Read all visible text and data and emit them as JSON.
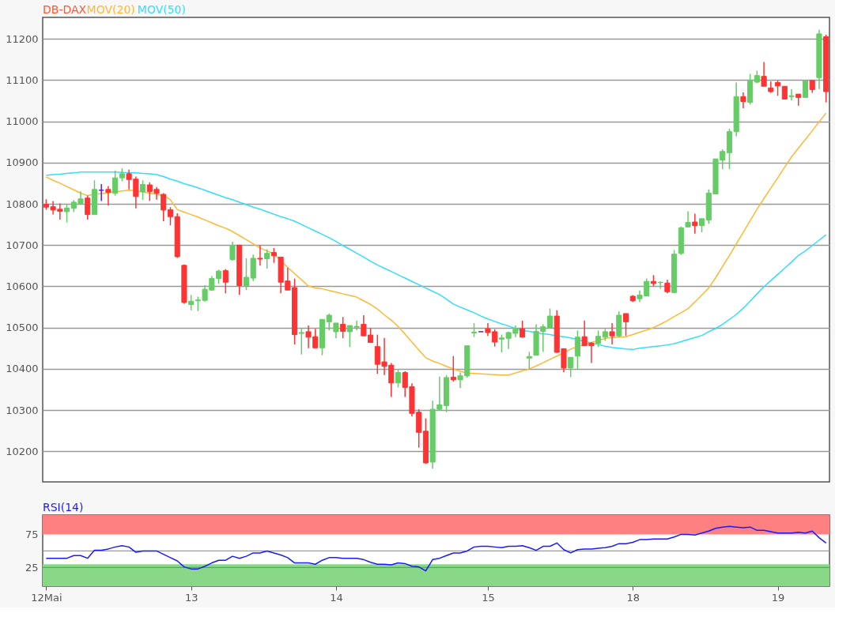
{
  "chart_data": [
    {
      "type": "candlestick",
      "legend": "top left",
      "grid": "y",
      "tick_labels": "y",
      "categories": [
        null,
        null,
        null,
        null,
        null,
        null,
        null,
        null,
        null,
        null,
        null,
        null,
        null,
        null,
        null,
        null,
        null,
        null,
        null,
        null,
        null,
        null,
        null,
        null,
        null,
        null,
        null,
        null,
        null,
        null,
        null,
        null,
        null,
        null,
        null,
        null,
        null,
        null,
        null,
        null,
        null,
        null,
        null,
        null,
        null,
        null,
        null,
        null,
        null,
        null,
        null,
        null,
        null,
        null,
        null,
        null,
        null,
        null,
        null,
        null,
        null,
        null,
        null,
        null,
        null,
        null,
        null,
        null,
        null,
        null,
        null,
        null,
        null,
        null,
        null,
        null,
        null,
        null,
        null,
        null,
        null,
        null,
        null,
        null,
        null,
        null,
        null,
        null,
        null,
        null,
        null,
        null,
        null,
        null,
        null,
        null,
        null,
        null,
        null,
        null,
        null,
        null,
        null,
        null,
        null,
        null,
        null,
        null,
        null,
        null,
        null,
        null,
        null,
        null
      ],
      "ylim": [
        10126,
        11252
      ],
      "yticks": [
        {
          "value": 10200,
          "label": "10200"
        },
        {
          "value": 10300,
          "label": "10300"
        },
        {
          "value": 10400,
          "label": "10400"
        },
        {
          "value": 10500,
          "label": "10500"
        },
        {
          "value": 10600,
          "label": "10600"
        },
        {
          "value": 10700,
          "label": "10700"
        },
        {
          "value": 10800,
          "label": "10800"
        },
        {
          "value": 10900,
          "label": "10900"
        },
        {
          "value": 11000,
          "label": "11000"
        },
        {
          "value": 11100,
          "label": "11100"
        },
        {
          "value": 11200,
          "label": "11200"
        }
      ],
      "series": [
        {
          "name": "DB-DAX",
          "type": "candlestick",
          "color": "#ff5533",
          "ohlc": [
            [
              10799,
              10811,
              10786,
              10792
            ],
            [
              10793,
              10807,
              10774,
              10785
            ],
            [
              10787,
              10801,
              10762,
              10782
            ],
            [
              10781,
              10798,
              10755,
              10790
            ],
            [
              10789,
              10809,
              10780,
              10804
            ],
            [
              10801,
              10830,
              10798,
              10812
            ],
            [
              10814,
              10820,
              10762,
              10774
            ],
            [
              10774,
              10857,
              10774,
              10835
            ],
            [
              10833,
              10848,
              10807,
              10833
            ],
            [
              10835,
              10843,
              10796,
              10828
            ],
            [
              10826,
              10881,
              10820,
              10863
            ],
            [
              10863,
              10886,
              10855,
              10873
            ],
            [
              10873,
              10883,
              10835,
              10859
            ],
            [
              10860,
              10866,
              10789,
              10818
            ],
            [
              10829,
              10857,
              10810,
              10847
            ],
            [
              10846,
              10852,
              10807,
              10830
            ],
            [
              10835,
              10841,
              10810,
              10826
            ],
            [
              10823,
              10826,
              10758,
              10785
            ],
            [
              10786,
              10792,
              10748,
              10769
            ],
            [
              10769,
              10777,
              10669,
              10672
            ],
            [
              10651,
              10653,
              10558,
              10561
            ],
            [
              10556,
              10579,
              10542,
              10564
            ],
            [
              10565,
              10575,
              10540,
              10567
            ],
            [
              10566,
              10603,
              10563,
              10593
            ],
            [
              10591,
              10625,
              10589,
              10619
            ],
            [
              10619,
              10640,
              10606,
              10637
            ],
            [
              10638,
              10642,
              10583,
              10610
            ],
            [
              10665,
              10708,
              10662,
              10699
            ],
            [
              10700,
              10700,
              10580,
              10602
            ],
            [
              10602,
              10668,
              10591,
              10622
            ],
            [
              10620,
              10677,
              10613,
              10668
            ],
            [
              10668,
              10700,
              10650,
              10666
            ],
            [
              10667,
              10690,
              10643,
              10680
            ],
            [
              10682,
              10693,
              10657,
              10674
            ],
            [
              10671,
              10671,
              10583,
              10610
            ],
            [
              10613,
              10645,
              10591,
              10591
            ],
            [
              10597,
              10619,
              10459,
              10483
            ],
            [
              10486,
              10499,
              10435,
              10488
            ],
            [
              10490,
              10505,
              10450,
              10477
            ],
            [
              10478,
              10497,
              10451,
              10451
            ],
            [
              10451,
              10520,
              10433,
              10520
            ],
            [
              10514,
              10534,
              10493,
              10530
            ],
            [
              10490,
              10511,
              10474,
              10511
            ],
            [
              10508,
              10526,
              10474,
              10491
            ],
            [
              10490,
              10505,
              10453,
              10505
            ],
            [
              10501,
              10517,
              10493,
              10503
            ],
            [
              10508,
              10530,
              10480,
              10480
            ],
            [
              10482,
              10499,
              10464,
              10464
            ],
            [
              10454,
              10483,
              10388,
              10411
            ],
            [
              10417,
              10475,
              10385,
              10406
            ],
            [
              10409,
              10414,
              10332,
              10366
            ],
            [
              10366,
              10398,
              10355,
              10391
            ],
            [
              10391,
              10394,
              10332,
              10355
            ],
            [
              10357,
              10365,
              10285,
              10292
            ],
            [
              10295,
              10302,
              10209,
              10246
            ],
            [
              10249,
              10280,
              10170,
              10172
            ],
            [
              10174,
              10323,
              10158,
              10302
            ],
            [
              10302,
              10381,
              10299,
              10313
            ],
            [
              10311,
              10385,
              10295,
              10379
            ],
            [
              10380,
              10431,
              10369,
              10374
            ],
            [
              10374,
              10391,
              10354,
              10383
            ],
            [
              10383,
              10456,
              10379,
              10456
            ],
            [
              10487,
              10511,
              10477,
              10489
            ],
            [
              10490,
              10490,
              10490,
              10490
            ],
            [
              10497,
              10511,
              10480,
              10488
            ],
            [
              10490,
              10496,
              10454,
              10465
            ],
            [
              10472,
              10483,
              10440,
              10475
            ],
            [
              10474,
              10490,
              10448,
              10488
            ],
            [
              10486,
              10505,
              10477,
              10497
            ],
            [
              10497,
              10517,
              10477,
              10477
            ],
            [
              10426,
              10441,
              10398,
              10430
            ],
            [
              10433,
              10508,
              10433,
              10491
            ],
            [
              10491,
              10508,
              10441,
              10502
            ],
            [
              10499,
              10546,
              10499,
              10528
            ],
            [
              10528,
              10542,
              10439,
              10440
            ],
            [
              10449,
              10449,
              10392,
              10402
            ],
            [
              10402,
              10428,
              10380,
              10428
            ],
            [
              10431,
              10493,
              10400,
              10477
            ],
            [
              10478,
              10517,
              10456,
              10456
            ],
            [
              10462,
              10465,
              10414,
              10456
            ],
            [
              10462,
              10493,
              10453,
              10479
            ],
            [
              10477,
              10497,
              10468,
              10490
            ],
            [
              10490,
              10511,
              10459,
              10480
            ],
            [
              10480,
              10539,
              10477,
              10530
            ],
            [
              10534,
              10534,
              10480,
              10514
            ],
            [
              10576,
              10579,
              10562,
              10565
            ],
            [
              10570,
              10590,
              10562,
              10579
            ],
            [
              10577,
              10619,
              10576,
              10612
            ],
            [
              10612,
              10627,
              10601,
              10607
            ],
            [
              10609,
              10612,
              10594,
              10610
            ],
            [
              10608,
              10616,
              10583,
              10587
            ],
            [
              10585,
              10688,
              10585,
              10678
            ],
            [
              10680,
              10745,
              10676,
              10742
            ],
            [
              10744,
              10782,
              10744,
              10755
            ],
            [
              10756,
              10776,
              10728,
              10747
            ],
            [
              10747,
              10764,
              10731,
              10764
            ],
            [
              10761,
              10835,
              10752,
              10826
            ],
            [
              10824,
              10909,
              10823,
              10909
            ],
            [
              10906,
              10932,
              10884,
              10927
            ],
            [
              10924,
              10982,
              10884,
              10975
            ],
            [
              10975,
              11094,
              10964,
              11060
            ],
            [
              11060,
              11070,
              11032,
              11048
            ],
            [
              11046,
              11115,
              11041,
              11100
            ],
            [
              11095,
              11123,
              11093,
              11111
            ],
            [
              11109,
              11144,
              11085,
              11085
            ],
            [
              11081,
              11097,
              11069,
              11072
            ],
            [
              11094,
              11099,
              11062,
              11086
            ],
            [
              11085,
              11085,
              11054,
              11054
            ],
            [
              11060,
              11078,
              11051,
              11062
            ],
            [
              11066,
              11066,
              11038,
              11058
            ],
            [
              11058,
              11099,
              11058,
              11099
            ],
            [
              11099,
              11100,
              11069,
              11077
            ],
            [
              11106,
              11222,
              11078,
              11212
            ],
            [
              11205,
              11210,
              11046,
              11072
            ]
          ],
          "colors": [
            "#ff3333",
            "#ff3333",
            "#ff3333",
            "#66cc66",
            "#66cc66",
            "#66cc66",
            "#ff3333",
            "#66cc66",
            "#5522cc",
            "#ff3333",
            "#66cc66",
            "#66cc66",
            "#ff3333",
            "#ff3333",
            "#66cc66",
            "#ff3333",
            "#ff3333",
            "#ff3333",
            "#ff3333",
            "#ff3333",
            "#ff3333",
            "#66cc66",
            "#66cc66",
            "#66cc66",
            "#66cc66",
            "#66cc66",
            "#ff3333",
            "#66cc66",
            "#ff3333",
            "#66cc66",
            "#66cc66",
            "#ff3333",
            "#66cc66",
            "#ff3333",
            "#ff3333",
            "#ff3333",
            "#ff3333",
            "#66cc66",
            "#ff3333",
            "#ff3333",
            "#66cc66",
            "#66cc66",
            "#66cc66",
            "#ff3333",
            "#66cc66",
            "#66cc66",
            "#ff3333",
            "#ff3333",
            "#ff3333",
            "#ff3333",
            "#ff3333",
            "#66cc66",
            "#ff3333",
            "#ff3333",
            "#ff3333",
            "#ff3333",
            "#66cc66",
            "#66cc66",
            "#66cc66",
            "#ff3333",
            "#66cc66",
            "#66cc66",
            "#66cc66",
            "#5522cc",
            "#ff3333",
            "#ff3333",
            "#66cc66",
            "#66cc66",
            "#66cc66",
            "#ff3333",
            "#66cc66",
            "#66cc66",
            "#66cc66",
            "#66cc66",
            "#ff3333",
            "#ff3333",
            "#66cc66",
            "#66cc66",
            "#ff3333",
            "#ff3333",
            "#66cc66",
            "#66cc66",
            "#ff3333",
            "#66cc66",
            "#ff3333",
            "#ff3333",
            "#66cc66",
            "#66cc66",
            "#ff3333",
            "#66cc66",
            "#ff3333",
            "#66cc66",
            "#66cc66",
            "#66cc66",
            "#ff3333",
            "#66cc66",
            "#66cc66",
            "#66cc66",
            "#66cc66",
            "#66cc66",
            "#66cc66",
            "#ff3333",
            "#66cc66",
            "#66cc66",
            "#ff3333",
            "#ff3333",
            "#ff3333",
            "#ff3333",
            "#66cc66",
            "#ff3333",
            "#66cc66",
            "#ff3333",
            "#66cc66",
            "#ff3333"
          ]
        },
        {
          "name": "MOV(20)",
          "type": "line",
          "color": "#ffb833",
          "values": [
            10865,
            10857,
            10850,
            10842,
            10834,
            10826,
            10820,
            10823,
            10825,
            10827,
            10829,
            10831,
            10833,
            10832,
            10829,
            10826,
            10823,
            10821,
            10810,
            10786,
            10780,
            10774,
            10768,
            10761,
            10754,
            10747,
            10741,
            10733,
            10723,
            10713,
            10703,
            10693,
            10686,
            10679,
            10662,
            10646,
            10631,
            10616,
            10601,
            10596,
            10594,
            10590,
            10586,
            10582,
            10578,
            10574,
            10565,
            10556,
            10545,
            10531,
            10518,
            10503,
            10484,
            10465,
            10446,
            10427,
            10419,
            10413,
            10406,
            10400,
            10394,
            10390,
            10389,
            10388,
            10387,
            10386,
            10385,
            10385,
            10390,
            10395,
            10400,
            10407,
            10415,
            10423,
            10431,
            10439,
            10448,
            10454,
            10459,
            10464,
            10469,
            10474,
            10476,
            10477,
            10478,
            10483,
            10489,
            10494,
            10500,
            10508,
            10517,
            10527,
            10536,
            10546,
            10562,
            10579,
            10596,
            10621,
            10648,
            10675,
            10703,
            10731,
            10759,
            10787,
            10813,
            10838,
            10863,
            10889,
            10914,
            10935,
            10956,
            10977,
            10999,
            11020
          ]
        },
        {
          "name": "MOV(50)",
          "type": "line",
          "color": "#33ddff",
          "values": [
            10869,
            10871,
            10872,
            10874,
            10875,
            10877,
            10877,
            10877,
            10877,
            10877,
            10877,
            10876,
            10875,
            10875,
            10874,
            10873,
            10871,
            10866,
            10860,
            10855,
            10849,
            10844,
            10839,
            10833,
            10827,
            10821,
            10815,
            10810,
            10804,
            10798,
            10792,
            10787,
            10781,
            10775,
            10769,
            10764,
            10758,
            10750,
            10742,
            10734,
            10726,
            10718,
            10709,
            10699,
            10690,
            10680,
            10671,
            10661,
            10652,
            10644,
            10636,
            10628,
            10620,
            10612,
            10604,
            10596,
            10588,
            10580,
            10569,
            10557,
            10550,
            10543,
            10536,
            10528,
            10521,
            10515,
            10509,
            10504,
            10498,
            10493,
            10491,
            10488,
            10485,
            10483,
            10480,
            10478,
            10475,
            10471,
            10467,
            10463,
            10459,
            10455,
            10452,
            10450,
            10448,
            10447,
            10450,
            10452,
            10454,
            10456,
            10458,
            10461,
            10466,
            10471,
            10476,
            10481,
            10490,
            10498,
            10508,
            10520,
            10532,
            10547,
            10564,
            10582,
            10599,
            10614,
            10629,
            10644,
            10659,
            10675,
            10686,
            10699,
            10712,
            10725
          ]
        }
      ]
    },
    {
      "type": "line",
      "legend": "top left",
      "categories": [
        "12Mai",
        null,
        null,
        null,
        null,
        null,
        null,
        null,
        null,
        null,
        null,
        null,
        null,
        null,
        null,
        null,
        null,
        null,
        null,
        null,
        null,
        "13",
        null,
        null,
        null,
        null,
        null,
        null,
        null,
        null,
        null,
        null,
        null,
        null,
        null,
        null,
        null,
        null,
        null,
        null,
        null,
        null,
        "14",
        null,
        null,
        null,
        null,
        null,
        null,
        null,
        null,
        null,
        null,
        null,
        null,
        null,
        null,
        null,
        null,
        null,
        null,
        null,
        null,
        null,
        "15",
        null,
        null,
        null,
        null,
        null,
        null,
        null,
        null,
        null,
        null,
        null,
        null,
        null,
        null,
        null,
        null,
        null,
        null,
        null,
        null,
        "18",
        null,
        null,
        null,
        null,
        null,
        null,
        null,
        null,
        null,
        null,
        null,
        null,
        null,
        null,
        null,
        null,
        null,
        null,
        null,
        null,
        "19",
        null,
        null,
        null,
        null,
        null,
        null,
        null
      ],
      "ylim": [
        -3,
        104
      ],
      "yticks": [
        25,
        75
      ],
      "bands": [
        {
          "axis": "y",
          "from": 75,
          "to": 104,
          "color": "#ff8080"
        },
        {
          "axis": "y",
          "from": -3,
          "to": 30,
          "color": "#88d888"
        }
      ],
      "ref_lines": [
        {
          "axis": "y",
          "value": 50,
          "color": "#999999"
        },
        {
          "axis": "y",
          "value": 25,
          "color": "#55aa55"
        }
      ],
      "series": [
        {
          "name": "RSI(14)",
          "color": "#1a1aff",
          "values": [
            39,
            39,
            39,
            39,
            43,
            43,
            39,
            51,
            51,
            53,
            56,
            58,
            56,
            48,
            50,
            50,
            50,
            45,
            40,
            35,
            26,
            23,
            23,
            27,
            32,
            36,
            36,
            42,
            39,
            42,
            47,
            47,
            50,
            47,
            44,
            40,
            32,
            32,
            32,
            30,
            36,
            40,
            40,
            39,
            39,
            39,
            37,
            33,
            30,
            30,
            29,
            32,
            31,
            27,
            26,
            20,
            37,
            39,
            43,
            47,
            47,
            50,
            56,
            57,
            57,
            56,
            55,
            57,
            57,
            58,
            55,
            51,
            57,
            57,
            62,
            52,
            47,
            52,
            53,
            53,
            54,
            55,
            57,
            61,
            61,
            63,
            67,
            67,
            68,
            68,
            68,
            71,
            75,
            75,
            74,
            77,
            80,
            84,
            86,
            87,
            86,
            85,
            86,
            81,
            81,
            79,
            77,
            77,
            77,
            78,
            77,
            80,
            70,
            62
          ]
        }
      ]
    }
  ]
}
